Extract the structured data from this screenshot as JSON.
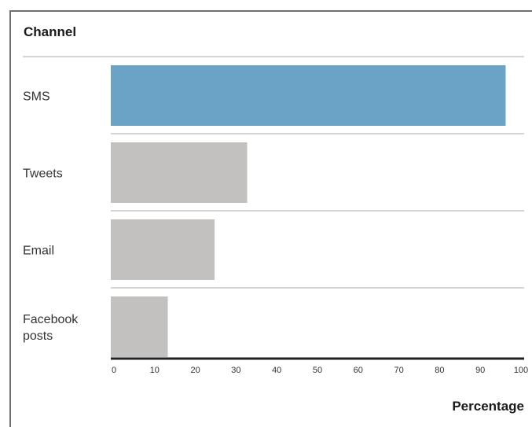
{
  "chart_data": {
    "type": "bar",
    "orientation": "horizontal",
    "title": "Channel",
    "xlabel": "Percentage",
    "ylabel": "",
    "categories": [
      [
        "SMS"
      ],
      [
        "Tweets"
      ],
      [
        "Email"
      ],
      [
        "Facebook",
        "posts"
      ]
    ],
    "values": [
      97,
      33.5,
      25.5,
      14
    ],
    "xlim": [
      0,
      100
    ],
    "xticks": [
      0,
      10,
      20,
      30,
      40,
      50,
      60,
      70,
      80,
      90,
      100
    ],
    "grid": false,
    "legend": "none",
    "colors": {
      "highlight": "#6ba3c6",
      "default": "#c3c1bf",
      "axis": "#222222",
      "separator": "#a8a8a8"
    },
    "highlight_index": 0
  }
}
